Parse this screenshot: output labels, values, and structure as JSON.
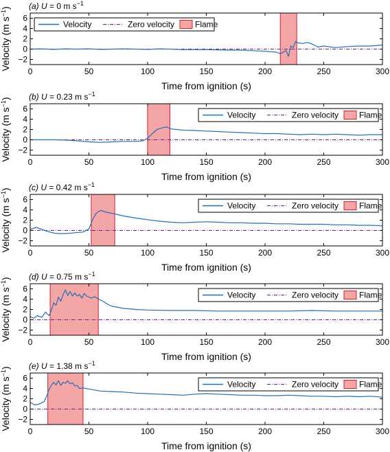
{
  "colors": {
    "velocity": "#1f6fb4",
    "zero": "#6a1a8a",
    "flame_fill": "#f4a6a6",
    "flame_edge": "#d11f2a"
  },
  "chart_data": [
    {
      "type": "line",
      "panel_letter": "(a)",
      "title_prefix": "U = 0 m s",
      "title_sup": "−1",
      "xlabel": "Time from ignition (s)",
      "ylabel": "Velocity (m s",
      "ylabel_sup": "−1",
      "ylabel_close": ")",
      "xlim": [
        0,
        300
      ],
      "ylim": [
        -3,
        7
      ],
      "xticks": [
        0,
        50,
        100,
        150,
        200,
        250,
        300
      ],
      "yticks": [
        -2,
        0,
        2,
        4,
        6
      ],
      "legend_position": "top-left",
      "legend": [
        "Velocity",
        "Zero velocity",
        "Flame"
      ],
      "flame_interval": [
        213,
        227
      ],
      "series": [
        {
          "name": "Velocity",
          "x": [
            0,
            10,
            20,
            30,
            40,
            50,
            60,
            70,
            80,
            90,
            100,
            110,
            120,
            130,
            140,
            150,
            160,
            170,
            180,
            190,
            200,
            205,
            210,
            213,
            216,
            218,
            220,
            222,
            224,
            226,
            228,
            232,
            236,
            240,
            245,
            250,
            260,
            270,
            280,
            290,
            300
          ],
          "y": [
            0,
            0.05,
            -0.05,
            0.05,
            0,
            0.05,
            -0.05,
            0,
            0.05,
            0,
            -0.05,
            0.05,
            0,
            -0.1,
            -0.1,
            -0.1,
            -0.15,
            -0.2,
            -0.2,
            -0.3,
            -0.4,
            -0.5,
            -0.6,
            -0.9,
            -0.5,
            -0.3,
            -1.4,
            0.6,
            0.3,
            1.5,
            1.2,
            1.1,
            1.3,
            1.0,
            0.4,
            0.6,
            0.3,
            0.5,
            0.6,
            0.6,
            0.8
          ]
        },
        {
          "name": "Zero velocity",
          "x": [
            0,
            300
          ],
          "y": [
            0,
            0
          ]
        }
      ]
    },
    {
      "type": "line",
      "panel_letter": "(b)",
      "title_prefix": "U = 0.23 m s",
      "title_sup": "−1",
      "xlabel": "Time from ignition (s)",
      "ylabel": "Velocity (m s",
      "ylabel_sup": "−1",
      "ylabel_close": ")",
      "xlim": [
        0,
        300
      ],
      "ylim": [
        -3,
        7
      ],
      "xticks": [
        0,
        50,
        100,
        150,
        200,
        250,
        300
      ],
      "yticks": [
        -2,
        0,
        2,
        4,
        6
      ],
      "legend_position": "top-right",
      "legend": [
        "Velocity",
        "Zero velocity",
        "Flame"
      ],
      "flame_interval": [
        100,
        119
      ],
      "series": [
        {
          "name": "Velocity",
          "x": [
            0,
            10,
            20,
            30,
            40,
            50,
            60,
            70,
            80,
            90,
            96,
            100,
            104,
            108,
            112,
            116,
            120,
            125,
            130,
            140,
            150,
            160,
            170,
            180,
            190,
            200,
            210,
            220,
            230,
            240,
            250,
            260,
            270,
            280,
            290,
            300
          ],
          "y": [
            0,
            0,
            0,
            -0.05,
            -0.2,
            -0.4,
            -0.5,
            -0.4,
            -0.3,
            -0.3,
            -0.2,
            0.3,
            1.2,
            2.0,
            2.3,
            2.5,
            2.1,
            2.0,
            1.9,
            1.8,
            1.7,
            1.6,
            1.5,
            1.4,
            1.3,
            1.2,
            1.2,
            1.1,
            1.0,
            1.1,
            1.0,
            1.1,
            1.0,
            0.9,
            1.0,
            1.0
          ]
        },
        {
          "name": "Zero velocity",
          "x": [
            0,
            300
          ],
          "y": [
            0,
            0
          ]
        }
      ]
    },
    {
      "type": "line",
      "panel_letter": "(c)",
      "title_prefix": "U = 0.42 m s",
      "title_sup": "−1",
      "xlabel": "Time from ignition (s)",
      "ylabel": "Velocity (m s",
      "ylabel_sup": "−1",
      "ylabel_close": ")",
      "xlim": [
        0,
        300
      ],
      "ylim": [
        -3,
        7
      ],
      "xticks": [
        0,
        50,
        100,
        150,
        200,
        250,
        300
      ],
      "yticks": [
        -2,
        0,
        2,
        4,
        6
      ],
      "legend_position": "top-right",
      "legend": [
        "Velocity",
        "Zero velocity",
        "Flame"
      ],
      "flame_interval": [
        52,
        72
      ],
      "series": [
        {
          "name": "Velocity",
          "x": [
            0,
            5,
            10,
            15,
            20,
            25,
            30,
            35,
            40,
            45,
            50,
            53,
            56,
            60,
            64,
            68,
            72,
            76,
            80,
            90,
            100,
            110,
            120,
            130,
            140,
            150,
            160,
            170,
            180,
            190,
            200,
            210,
            220,
            230,
            240,
            250,
            260,
            270,
            280,
            290,
            300
          ],
          "y": [
            0.2,
            0.6,
            0.2,
            -0.2,
            -0.5,
            -0.6,
            -0.6,
            -0.5,
            -0.4,
            -0.3,
            0.3,
            2.0,
            3.3,
            3.9,
            3.6,
            3.4,
            3.2,
            3.0,
            2.8,
            2.4,
            2.1,
            1.8,
            1.6,
            1.5,
            1.6,
            1.7,
            1.6,
            1.5,
            1.5,
            1.4,
            1.4,
            1.3,
            1.3,
            1.2,
            1.2,
            1.2,
            1.1,
            1.1,
            1.0,
            1.0,
            0.9
          ]
        },
        {
          "name": "Zero velocity",
          "x": [
            0,
            300
          ],
          "y": [
            0,
            0
          ]
        }
      ]
    },
    {
      "type": "line",
      "panel_letter": "(d)",
      "title_prefix": "U = 0.75 m s",
      "title_sup": "−1",
      "xlabel": "Time from ignition (s)",
      "ylabel": "Velocity (m s",
      "ylabel_sup": "−1",
      "ylabel_close": ")",
      "xlim": [
        0,
        300
      ],
      "ylim": [
        -3,
        7
      ],
      "xticks": [
        0,
        50,
        100,
        150,
        200,
        250,
        300
      ],
      "yticks": [
        -2,
        0,
        2,
        4,
        6
      ],
      "legend_position": "top-right",
      "legend": [
        "Velocity",
        "Zero velocity",
        "Flame"
      ],
      "flame_interval": [
        17,
        58
      ],
      "series": [
        {
          "name": "Velocity",
          "x": [
            0,
            3,
            6,
            10,
            13,
            16,
            18,
            20,
            22,
            24,
            26,
            28,
            30,
            32,
            34,
            36,
            38,
            40,
            42,
            44,
            46,
            48,
            50,
            52,
            55,
            58,
            62,
            66,
            70,
            80,
            90,
            100,
            120,
            140,
            160,
            180,
            200,
            220,
            240,
            260,
            280,
            300
          ],
          "y": [
            0.6,
            0.3,
            0.8,
            0.5,
            1.5,
            0.8,
            1.8,
            3.3,
            2.8,
            4.4,
            3.6,
            4.9,
            5.8,
            4.7,
            5.5,
            4.6,
            5.2,
            4.6,
            4.9,
            4.2,
            5.1,
            4.6,
            4.4,
            4.2,
            4.5,
            4.0,
            3.6,
            3.0,
            2.6,
            2.2,
            2.0,
            1.9,
            1.8,
            1.8,
            1.7,
            1.7,
            1.7,
            1.7,
            1.8,
            1.7,
            1.7,
            1.7
          ]
        },
        {
          "name": "Zero velocity",
          "x": [
            0,
            300
          ],
          "y": [
            0,
            0
          ]
        }
      ]
    },
    {
      "type": "line",
      "panel_letter": "(e)",
      "title_prefix": "U = 1.38 m s",
      "title_sup": "−1",
      "xlabel": "Time from ignition (s)",
      "ylabel": "Velocity (m s",
      "ylabel_sup": "−1",
      "ylabel_close": ")",
      "xlim": [
        0,
        300
      ],
      "ylim": [
        -3,
        7
      ],
      "xticks": [
        0,
        50,
        100,
        150,
        200,
        250,
        300
      ],
      "yticks": [
        -2,
        0,
        2,
        4,
        6
      ],
      "legend_position": "top-right",
      "legend": [
        "Velocity",
        "Zero velocity",
        "Flame"
      ],
      "flame_interval": [
        15,
        45
      ],
      "series": [
        {
          "name": "Velocity",
          "x": [
            0,
            4,
            8,
            12,
            14,
            16,
            18,
            20,
            22,
            24,
            26,
            28,
            30,
            32,
            34,
            36,
            38,
            40,
            42,
            45,
            50,
            55,
            60,
            70,
            80,
            90,
            100,
            110,
            120,
            130,
            140,
            150,
            160,
            170,
            180,
            190,
            200,
            210,
            220,
            230,
            240,
            250,
            260,
            270,
            280,
            290,
            300
          ],
          "y": [
            1.3,
            0.8,
            1.0,
            1.5,
            2.5,
            3.8,
            4.6,
            5.2,
            4.7,
            5.5,
            4.6,
            5.2,
            5.0,
            5.5,
            4.9,
            5.1,
            4.5,
            4.6,
            4.0,
            4.1,
            3.9,
            3.7,
            3.5,
            3.4,
            3.3,
            3.1,
            3.0,
            2.9,
            2.8,
            2.7,
            2.9,
            3.0,
            2.9,
            2.8,
            2.7,
            2.7,
            2.6,
            2.6,
            2.7,
            2.6,
            2.5,
            2.5,
            2.4,
            2.5,
            2.4,
            2.5,
            2.3
          ]
        },
        {
          "name": "Zero velocity",
          "x": [
            0,
            300
          ],
          "y": [
            0,
            0
          ]
        }
      ]
    }
  ]
}
